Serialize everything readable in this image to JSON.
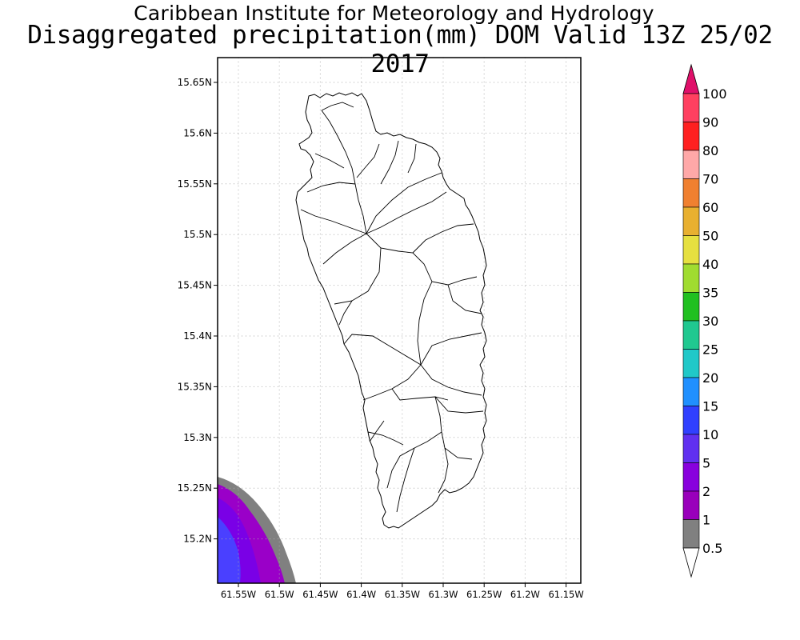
{
  "title_line1": "Caribbean Institute for Meteorology and Hydrology",
  "title_line2": "Disaggregated precipitation(mm) DOM Valid 13Z 25/02 2017",
  "map": {
    "lat_labels": [
      "15.65N",
      "15.6N",
      "15.55N",
      "15.5N",
      "15.45N",
      "15.4N",
      "15.35N",
      "15.3N",
      "15.25N",
      "15.2N"
    ],
    "lon_labels": [
      "61.55W",
      "61.5W",
      "61.45W",
      "61.4W",
      "61.35W",
      "61.3W",
      "61.25W",
      "61.2W",
      "61.15W"
    ],
    "grid": "dotted",
    "precip_region": "south-west corner",
    "precip_colors": [
      "#808080",
      "#9900cc",
      "#7a00e6",
      "#4040ff"
    ]
  },
  "colorbar": {
    "labels": [
      "100",
      "90",
      "80",
      "70",
      "60",
      "50",
      "40",
      "35",
      "30",
      "25",
      "20",
      "15",
      "10",
      "5",
      "2",
      "1",
      "0.5"
    ],
    "colors": [
      "#ff4060",
      "#ff2020",
      "#ffa8a8",
      "#f08030",
      "#e8b030",
      "#e6e040",
      "#a0dc30",
      "#20c020",
      "#20c890",
      "#20c8c8",
      "#2090ff",
      "#3040ff",
      "#6030f0",
      "#8800dd",
      "#9900bb",
      "#808080"
    ],
    "top_arrow_color": "#e0106a",
    "bottom_arrow_color": "#ffffff"
  }
}
